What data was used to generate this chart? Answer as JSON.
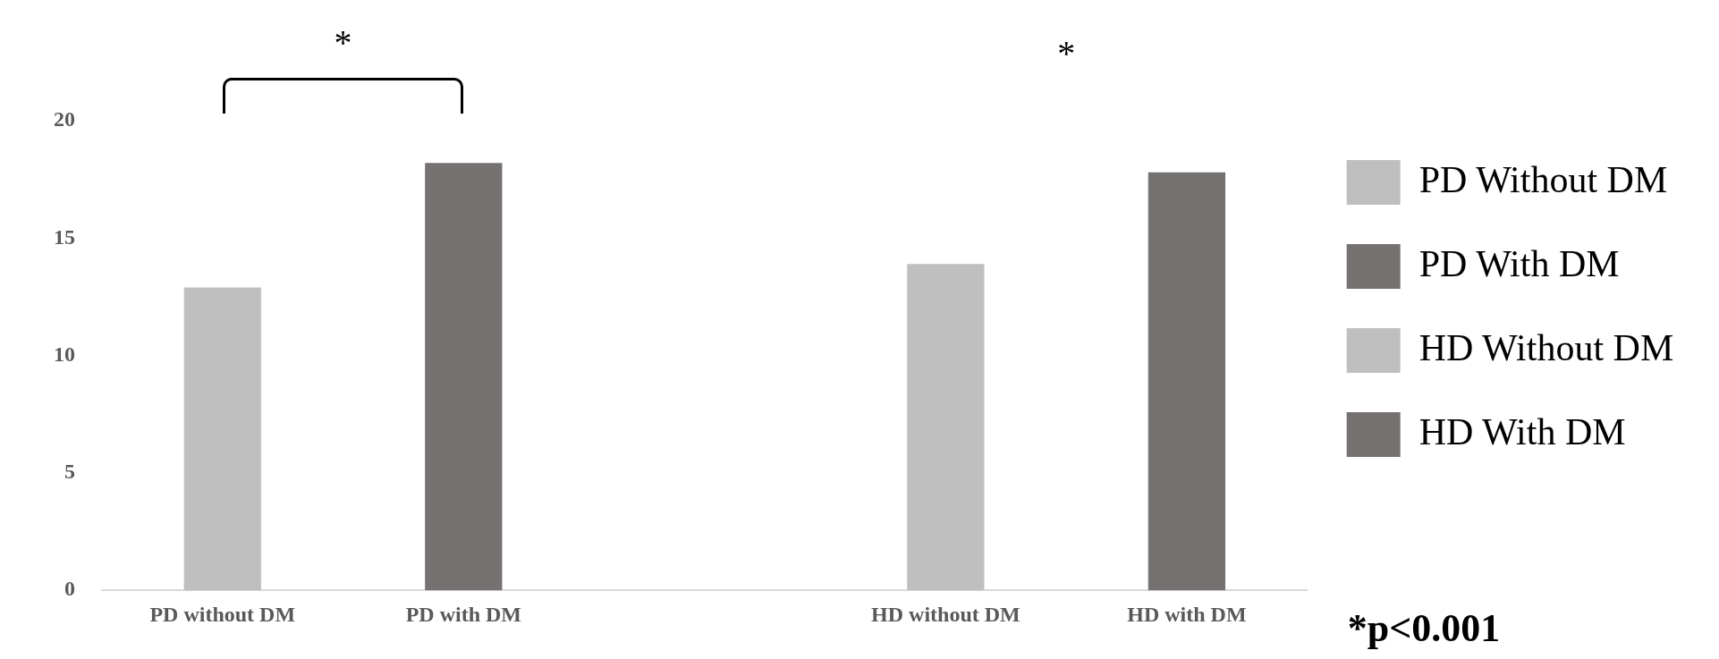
{
  "chart_data": {
    "type": "bar",
    "categories": [
      "PD without DM",
      "PD with DM",
      null,
      "HD without DM",
      "HD with DM"
    ],
    "series": [
      {
        "name": "PD Without DM",
        "color": "#bfbfbf",
        "values": [
          12.9,
          null,
          null,
          null,
          null
        ]
      },
      {
        "name": "PD With DM",
        "color": "#767171",
        "values": [
          null,
          18.2,
          null,
          null,
          null
        ]
      },
      {
        "name": "HD Without DM",
        "color": "#bfbfbf",
        "values": [
          null,
          null,
          null,
          13.9,
          null
        ]
      },
      {
        "name": "HD With DM",
        "color": "#767171",
        "values": [
          null,
          null,
          null,
          null,
          17.8
        ]
      }
    ],
    "ylim": [
      0,
      20
    ],
    "yticks": [
      0,
      5,
      10,
      15,
      20
    ],
    "grid": false,
    "legend": "top right",
    "annotations": [
      "*",
      "*",
      "*p<0.001"
    ]
  }
}
